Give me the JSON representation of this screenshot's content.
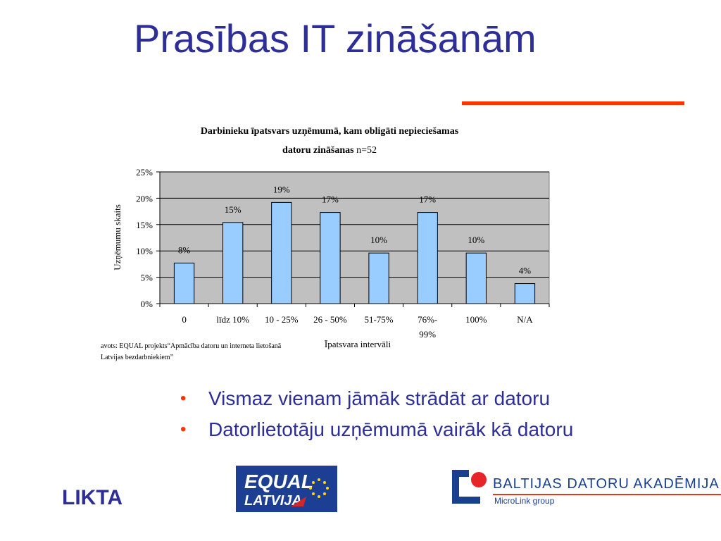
{
  "slide": {
    "title": "Prasības IT zināšanām",
    "bullets": [
      "Vismaz vienam jāmāk strādāt ar datoru",
      "Datorlietotāju uzņēmumā vairāk kā datoru"
    ],
    "source_note": "avots: EQUAL projekts“Apmācība datoru un interneta lietošanā Latvijas bezdarbniekiem”",
    "footer_label": "LIKTA"
  },
  "logos": {
    "equal_text_1": "EQUAL",
    "equal_text_2": "LATVIJA",
    "bda_name": "BALTIJAS DATORU AKADĒMIJA",
    "bda_sub": "MicroLink group"
  },
  "colors": {
    "title": "#2e2e99",
    "accent": "#ff3300",
    "plot_bg": "#c0c0c0",
    "bar_fill": "#99ccff"
  },
  "chart_data": {
    "type": "bar",
    "title_line1": "Darbinieku īpatsvars uzņēmumā, kam obligāti nepieciešamas",
    "title_line2_bold": "datoru zināšanas",
    "title_line2_rest": " n=52",
    "categories": [
      "0",
      "līdz 10%",
      "10 - 25%",
      "26 - 50%",
      "51-75%",
      "76%-\n99%",
      "100%",
      "N/A"
    ],
    "values": [
      8,
      15,
      19,
      17,
      10,
      17,
      10,
      4
    ],
    "data_labels": [
      "8%",
      "15%",
      "19%",
      "17%",
      "10%",
      "17%",
      "10%",
      "4%"
    ],
    "bar_heights_pct": [
      7.7,
      15.4,
      19.2,
      17.3,
      9.6,
      17.3,
      9.6,
      3.8
    ],
    "yticks": [
      "0%",
      "5%",
      "10%",
      "15%",
      "20%",
      "25%"
    ],
    "ylim": [
      0,
      25
    ],
    "xlabel": "Īpatsvara intervāli",
    "ylabel": "Uzņēmumu skaits",
    "grid": true,
    "legend": "none"
  }
}
